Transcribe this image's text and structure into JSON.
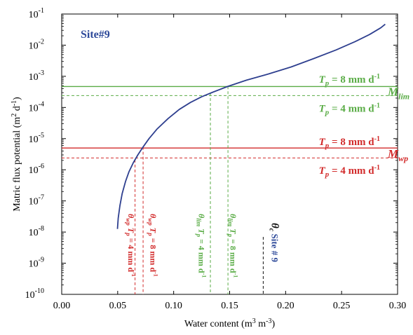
{
  "chart_data": {
    "type": "line",
    "site_label": "Site#9",
    "xlabel_main": "Water content (m",
    "xlabel_sup1": "3",
    "xlabel_mid": " m",
    "xlabel_sup2": "-3",
    "xlabel_end": ")",
    "ylabel_main": "Matric flux potential (m",
    "ylabel_sup1": "2",
    "ylabel_mid": " d",
    "ylabel_sup2": "-1",
    "ylabel_end": ")",
    "xlim": [
      0,
      0.3
    ],
    "ylim_exp": [
      -10,
      -1
    ],
    "y_scale": "log",
    "x_ticks": [
      "0.00",
      "0.05",
      "0.10",
      "0.15",
      "0.20",
      "0.25",
      "0.30"
    ],
    "y_tick_exponents": [
      "-10",
      "-9",
      "-8",
      "-7",
      "-6",
      "-5",
      "-4",
      "-3",
      "-2",
      "-1"
    ],
    "y_tick_base": "10",
    "curve": {
      "color": "#2e3f8f",
      "x": [
        0.0498,
        0.0505,
        0.052,
        0.054,
        0.057,
        0.06,
        0.064,
        0.068,
        0.072,
        0.078,
        0.085,
        0.095,
        0.105,
        0.115,
        0.125,
        0.135,
        0.148,
        0.165,
        0.185,
        0.205,
        0.225,
        0.245,
        0.262,
        0.275,
        0.285,
        0.289
      ],
      "y": [
        1.26e-08,
        2.8e-08,
        7e-08,
        1.7e-07,
        4.2e-07,
        8.5e-07,
        1.7e-06,
        3e-06,
        5e-06,
        1e-05,
        2e-05,
        4.4e-05,
        8.6e-05,
        0.000145,
        0.00022,
        0.00031,
        0.00047,
        0.00075,
        0.0012,
        0.002,
        0.0037,
        0.007,
        0.013,
        0.022,
        0.036,
        0.047
      ]
    },
    "hlines": [
      {
        "y": 0.00047,
        "color": "#5aac46",
        "style": "solid"
      },
      {
        "y": 0.00024,
        "color": "#5aac46",
        "style": "dashed"
      },
      {
        "y": 5e-06,
        "color": "#d22b2b",
        "style": "solid"
      },
      {
        "y": 2.4e-06,
        "color": "#d22b2b",
        "style": "dashed"
      }
    ],
    "vlines": [
      {
        "x": 0.0655,
        "color": "#d22b2b"
      },
      {
        "x": 0.0727,
        "color": "#d22b2b"
      },
      {
        "x": 0.1328,
        "color": "#5aac46"
      },
      {
        "x": 0.1485,
        "color": "#5aac46"
      },
      {
        "x": 0.18,
        "color": "#111111"
      }
    ],
    "right_labels": [
      {
        "id": "green-high",
        "tp": "T",
        "sub": "p",
        "text": " = 8 mm d",
        "sup": "-1",
        "y": 0.0008,
        "color": "#5aac46"
      },
      {
        "id": "green-low",
        "tp": "T",
        "sub": "p",
        "text": " = 4 mm d",
        "sup": "-1",
        "y": 9.5e-05,
        "color": "#5aac46"
      },
      {
        "id": "red-high",
        "tp": "T",
        "sub": "p",
        "text": " = 8 mm d",
        "sup": "-1",
        "y": 8e-06,
        "color": "#d22b2b"
      },
      {
        "id": "red-low",
        "tp": "T",
        "sub": "p",
        "text": " = 4 mm d",
        "sup": "-1",
        "y": 9.5e-07,
        "color": "#d22b2b"
      }
    ],
    "m_labels": [
      {
        "id": "mlim",
        "main": "M",
        "sub": "lim",
        "y": 0.00033,
        "color": "#5aac46"
      },
      {
        "id": "mwp",
        "main": "M",
        "sub": "wp",
        "y": 3.3e-06,
        "color": "#d22b2b"
      }
    ],
    "vertical_labels": [
      {
        "id": "wp4",
        "theta": "θ",
        "sub": "wp",
        "mid": " T",
        "sub2": "p",
        "text": " = 4 mm d",
        "sup": "-1",
        "x": 0.0595,
        "color": "#d22b2b"
      },
      {
        "id": "wp8",
        "theta": "θ",
        "sub": "wp",
        "mid": " T",
        "sub2": "p",
        "text": " = 8 mm d",
        "sup": "-1",
        "x": 0.0792,
        "color": "#d22b2b"
      },
      {
        "id": "lim4",
        "theta": "θ",
        "sub": "lim",
        "mid": " T",
        "sub2": "p",
        "text": " = 4 mm d",
        "sup": "-1",
        "x": 0.1225,
        "color": "#5aac46"
      },
      {
        "id": "lim8",
        "theta": "θ",
        "sub": "lim",
        "mid": " T",
        "sub2": "p",
        "text": " = 8 mm d",
        "sup": "-1",
        "x": 0.1505,
        "color": "#5aac46"
      }
    ],
    "site_vertical_label": {
      "theta": "θ",
      "sub": "c",
      "text": " Site # 9",
      "x": 0.1875,
      "theta_color": "#111111",
      "text_color": "#2e4a9a"
    }
  }
}
